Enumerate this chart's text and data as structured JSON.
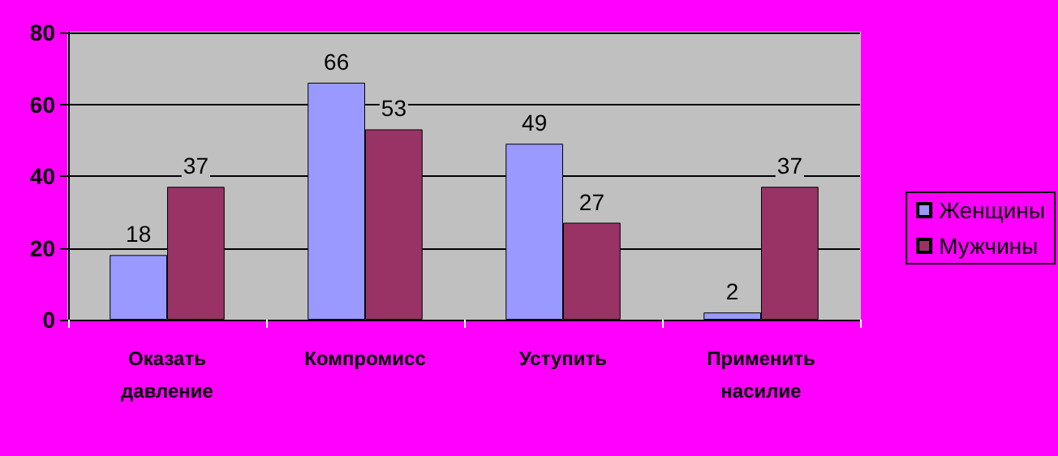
{
  "chart_data": {
    "type": "bar",
    "categories": [
      "Оказать давление",
      "Компромисс",
      "Уступить",
      "Применить насилие"
    ],
    "series": [
      {
        "name": "Женщины",
        "color": "#9999ff",
        "values": [
          18,
          66,
          49,
          2
        ]
      },
      {
        "name": "Мужчины",
        "color": "#993366",
        "values": [
          37,
          53,
          27,
          37
        ]
      }
    ],
    "ylim": [
      0,
      80
    ],
    "yticks": [
      0,
      20,
      40,
      60,
      80
    ],
    "grid": "y",
    "legend": "right",
    "data_labels": true
  }
}
